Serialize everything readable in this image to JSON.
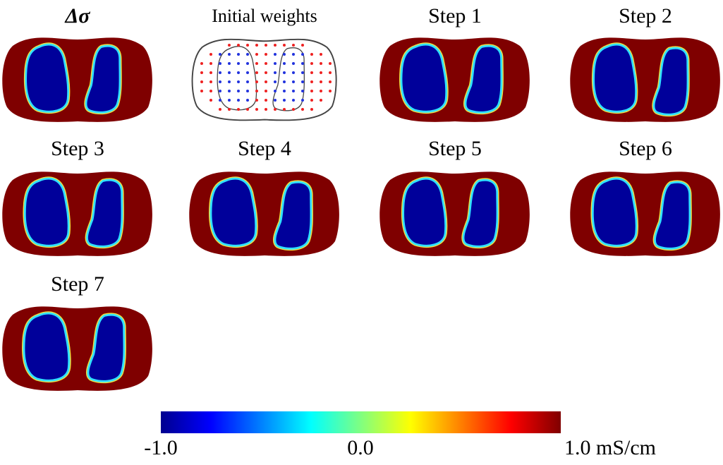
{
  "panels": [
    {
      "title": "Δσ"
    },
    {
      "title": "Initial weights"
    },
    {
      "title": "Step 1"
    },
    {
      "title": "Step 2"
    },
    {
      "title": "Step 3"
    },
    {
      "title": "Step 4"
    },
    {
      "title": "Step 5"
    },
    {
      "title": "Step 6"
    },
    {
      "title": "Step 7"
    }
  ],
  "colorbar": {
    "labels": [
      "-1.0",
      "0.0",
      "1.0 mS/cm"
    ]
  }
}
